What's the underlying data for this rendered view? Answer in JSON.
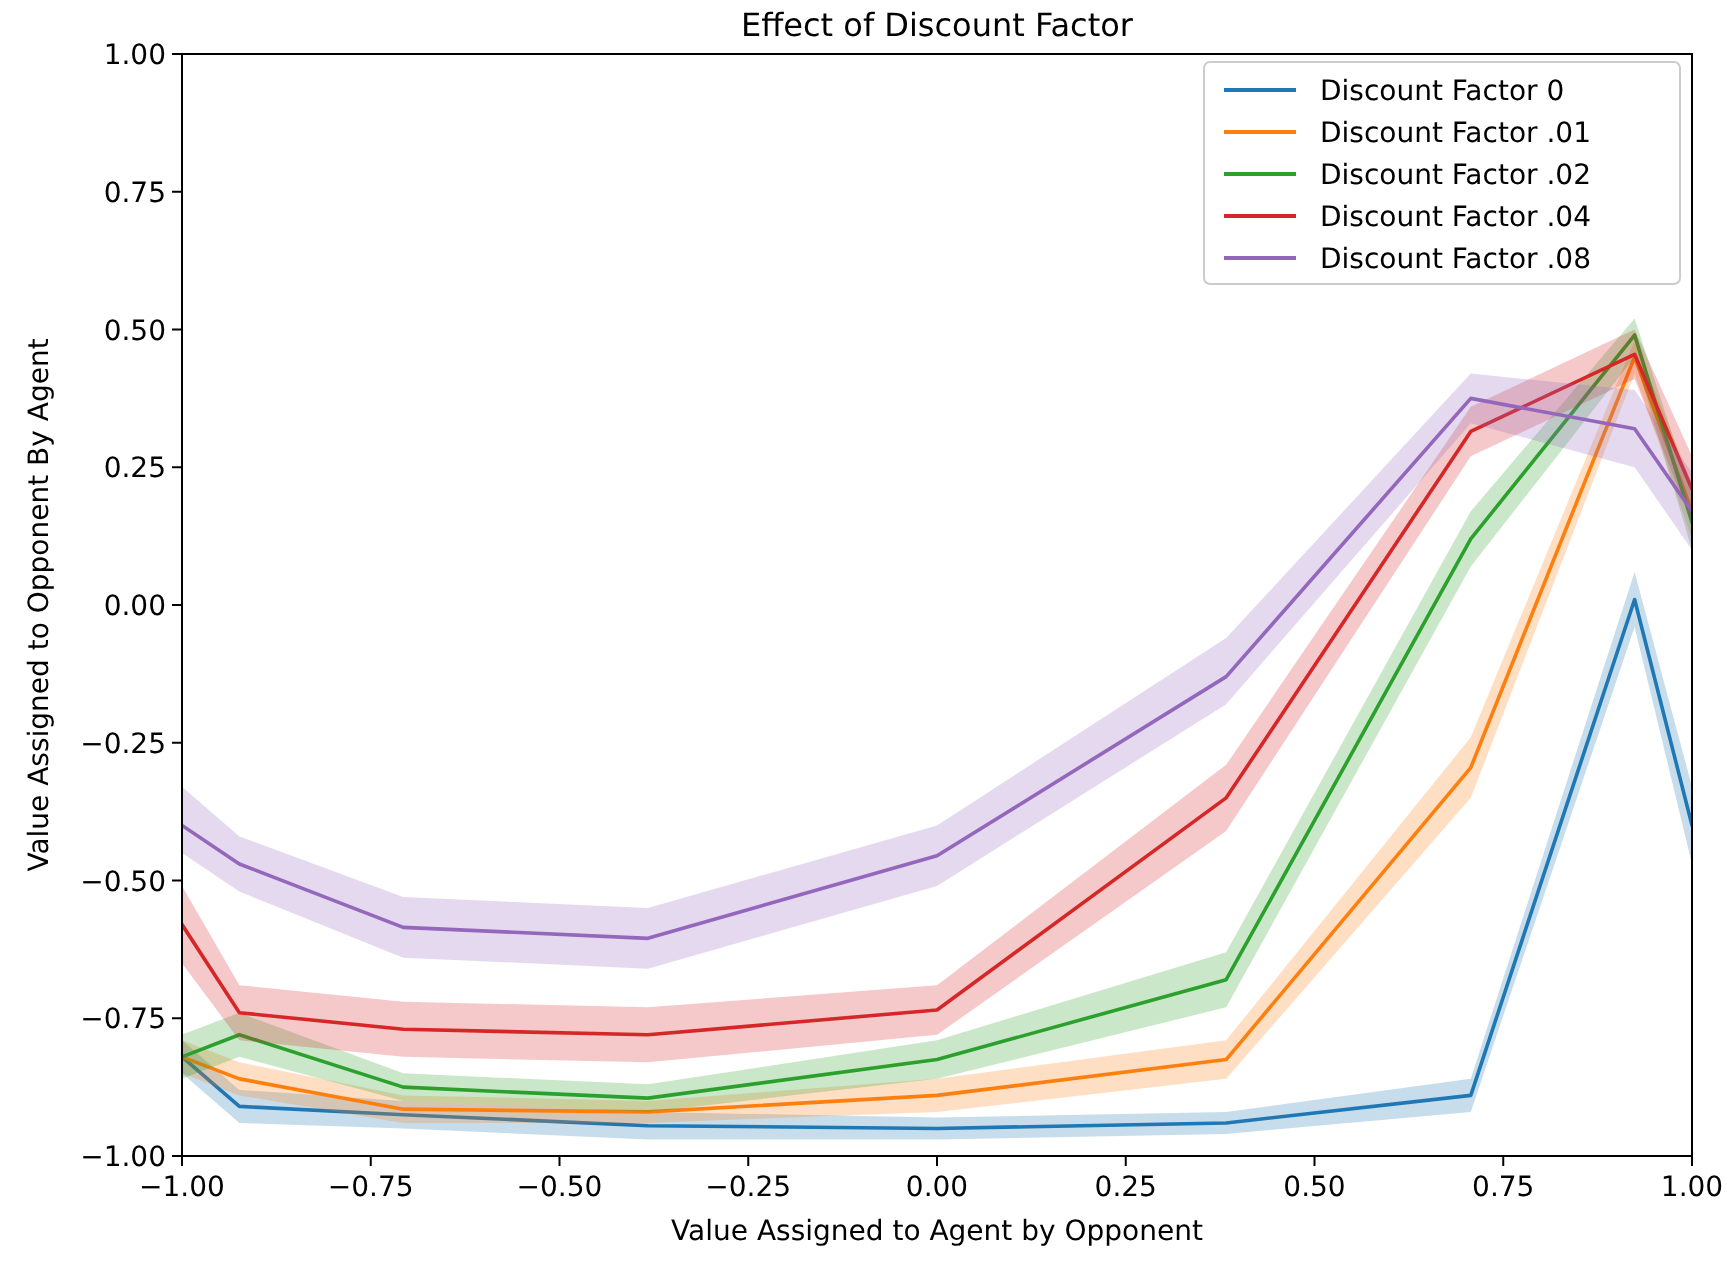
{
  "chart_data": {
    "type": "line",
    "title": "Effect of Discount Factor",
    "xlabel": "Value Assigned to Agent by Opponent",
    "ylabel": "Value Assigned to Opponent By Agent",
    "x": [
      -1,
      -0.924,
      -0.707,
      -0.383,
      0,
      0.383,
      0.707,
      0.924,
      1
    ],
    "series": [
      {
        "name": "Discount Factor 0",
        "color": "#1f77b4",
        "values": [
          -0.82,
          -0.91,
          -0.925,
          -0.945,
          -0.95,
          -0.94,
          -0.89,
          0.01,
          -0.4
        ],
        "lower": [
          -0.85,
          -0.94,
          -0.95,
          -0.97,
          -0.97,
          -0.96,
          -0.92,
          -0.04,
          -0.47
        ],
        "upper": [
          -0.79,
          -0.88,
          -0.9,
          -0.92,
          -0.93,
          -0.92,
          -0.86,
          0.06,
          -0.33
        ]
      },
      {
        "name": "Discount Factor .01",
        "color": "#ff7f0e",
        "values": [
          -0.82,
          -0.86,
          -0.915,
          -0.92,
          -0.89,
          -0.825,
          -0.295,
          0.45,
          0.17
        ],
        "lower": [
          -0.85,
          -0.89,
          -0.94,
          -0.94,
          -0.92,
          -0.86,
          -0.35,
          0.42,
          0.12
        ],
        "upper": [
          -0.79,
          -0.83,
          -0.89,
          -0.9,
          -0.86,
          -0.79,
          -0.24,
          0.48,
          0.22
        ]
      },
      {
        "name": "Discount Factor .02",
        "color": "#2ca02c",
        "values": [
          -0.82,
          -0.78,
          -0.875,
          -0.895,
          -0.825,
          -0.68,
          0.12,
          0.49,
          0.15
        ],
        "lower": [
          -0.86,
          -0.82,
          -0.9,
          -0.92,
          -0.86,
          -0.73,
          0.07,
          0.45,
          0.1
        ],
        "upper": [
          -0.78,
          -0.74,
          -0.85,
          -0.87,
          -0.79,
          -0.63,
          0.17,
          0.52,
          0.2
        ]
      },
      {
        "name": "Discount Factor .04",
        "color": "#d62728",
        "values": [
          -0.58,
          -0.74,
          -0.77,
          -0.78,
          -0.735,
          -0.35,
          0.315,
          0.455,
          0.21
        ],
        "lower": [
          -0.65,
          -0.79,
          -0.82,
          -0.83,
          -0.78,
          -0.41,
          0.27,
          0.41,
          0.15
        ],
        "upper": [
          -0.51,
          -0.69,
          -0.72,
          -0.73,
          -0.69,
          -0.29,
          0.36,
          0.5,
          0.27
        ]
      },
      {
        "name": "Discount Factor .08",
        "color": "#9467bd",
        "values": [
          -0.4,
          -0.47,
          -0.585,
          -0.605,
          -0.455,
          -0.13,
          0.375,
          0.32,
          0.17
        ],
        "lower": [
          -0.45,
          -0.52,
          -0.64,
          -0.66,
          -0.51,
          -0.18,
          0.33,
          0.25,
          0.1
        ],
        "upper": [
          -0.33,
          -0.42,
          -0.53,
          -0.55,
          -0.4,
          -0.06,
          0.42,
          0.39,
          0.24
        ]
      }
    ],
    "xlim": [
      -1,
      1
    ],
    "ylim": [
      -1,
      1
    ],
    "xticks": [
      {
        "value": -1,
        "label": "−1.00"
      },
      {
        "value": -0.75,
        "label": "−0.75"
      },
      {
        "value": -0.5,
        "label": "−0.50"
      },
      {
        "value": -0.25,
        "label": "−0.25"
      },
      {
        "value": 0,
        "label": "0.00"
      },
      {
        "value": 0.25,
        "label": "0.25"
      },
      {
        "value": 0.5,
        "label": "0.50"
      },
      {
        "value": 0.75,
        "label": "0.75"
      },
      {
        "value": 1,
        "label": "1.00"
      }
    ],
    "yticks": [
      {
        "value": -1,
        "label": "−1.00"
      },
      {
        "value": -0.75,
        "label": "−0.75"
      },
      {
        "value": -0.5,
        "label": "−0.50"
      },
      {
        "value": -0.25,
        "label": "−0.25"
      },
      {
        "value": 0,
        "label": "0.00"
      },
      {
        "value": 0.25,
        "label": "0.25"
      },
      {
        "value": 0.5,
        "label": "0.50"
      },
      {
        "value": 0.75,
        "label": "0.75"
      },
      {
        "value": 1,
        "label": "1.00"
      }
    ],
    "grid": false,
    "legend": "top right",
    "marker": "none",
    "line_style": "solid"
  }
}
